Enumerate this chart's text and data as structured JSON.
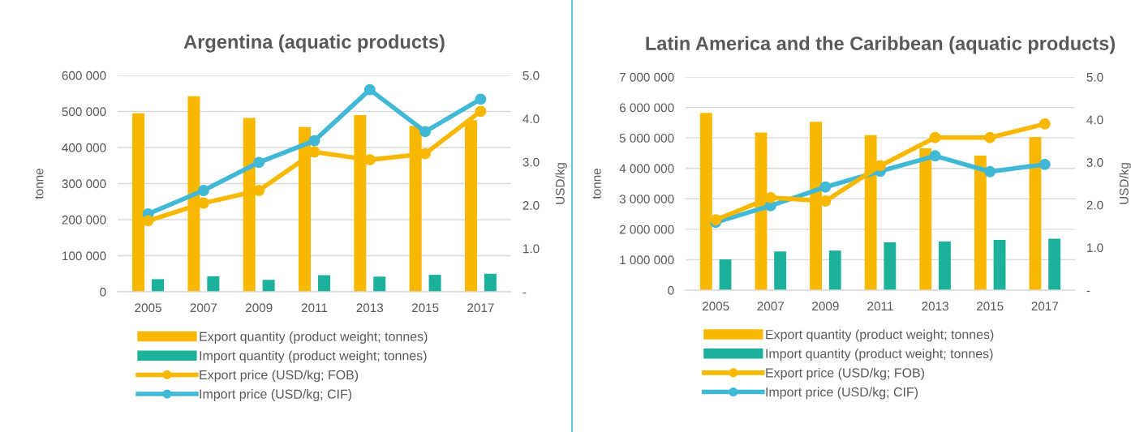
{
  "chart_data": [
    {
      "type": "bar",
      "title": "Argentina (aquatic products)",
      "ylabel": "tonne",
      "y2label": "USD/kg",
      "categories": [
        "2005",
        "2007",
        "2009",
        "2011",
        "2013",
        "2015",
        "2017"
      ],
      "series": [
        {
          "name": "Export quantity (product weight; tonnes)",
          "color": "#f9b800",
          "values": [
            495000,
            542000,
            482000,
            457000,
            490000,
            460000,
            476000
          ]
        },
        {
          "name": "Import quantity (product weight; tonnes)",
          "color": "#1bb19b",
          "values": [
            35000,
            43000,
            33000,
            46000,
            42000,
            47000,
            50000
          ]
        },
        {
          "name": "Export price (USD/kg; FOB)",
          "type": "line",
          "axis": "y2",
          "color": "#f9b800",
          "values": [
            1.64,
            2.05,
            2.34,
            3.23,
            3.05,
            3.19,
            4.17
          ]
        },
        {
          "name": "Import price (USD/kg; CIF)",
          "type": "line",
          "axis": "y2",
          "color": "#41b8d5",
          "values": [
            1.8,
            2.34,
            2.99,
            3.49,
            4.67,
            3.7,
            4.45
          ]
        }
      ],
      "ylim": [
        0,
        600000
      ],
      "yticks": [
        {
          "value": 0,
          "label": "0"
        },
        {
          "value": 100000,
          "label": "100 000"
        },
        {
          "value": 200000,
          "label": "200 000"
        },
        {
          "value": 300000,
          "label": "300 000"
        },
        {
          "value": 400000,
          "label": "400 000"
        },
        {
          "value": 500000,
          "label": "500 000"
        },
        {
          "value": 600000,
          "label": "600 000"
        }
      ],
      "y2lim": [
        0,
        5
      ],
      "y2ticks": [
        {
          "value": 0,
          "label": "-"
        },
        {
          "value": 1,
          "label": "1.0"
        },
        {
          "value": 2,
          "label": "2.0"
        },
        {
          "value": 3,
          "label": "3.0"
        },
        {
          "value": 4,
          "label": "4.0"
        },
        {
          "value": 5,
          "label": "5.0"
        }
      ],
      "grid": "y",
      "legend": "bottom",
      "marker": "circle"
    },
    {
      "type": "bar",
      "title": "Latin America and the Caribbean (aquatic products)",
      "ylabel": "tonne",
      "y2label": "USD/kg",
      "categories": [
        "2005",
        "2007",
        "2009",
        "2011",
        "2013",
        "2015",
        "2017"
      ],
      "series": [
        {
          "name": "Export quantity (product weight; tonnes)",
          "color": "#f9b800",
          "values": [
            5820000,
            5180000,
            5530000,
            5090000,
            4660000,
            4420000,
            5030000
          ]
        },
        {
          "name": "Import quantity (product weight; tonnes)",
          "color": "#1bb19b",
          "values": [
            1010000,
            1270000,
            1300000,
            1570000,
            1600000,
            1650000,
            1690000
          ]
        },
        {
          "name": "Export price (USD/kg; FOB)",
          "type": "line",
          "axis": "y2",
          "color": "#f9b800",
          "values": [
            1.65,
            2.17,
            2.09,
            2.92,
            3.58,
            3.58,
            3.9
          ]
        },
        {
          "name": "Import price (USD/kg; CIF)",
          "type": "line",
          "axis": "y2",
          "color": "#41b8d5",
          "values": [
            1.59,
            1.98,
            2.42,
            2.79,
            3.15,
            2.78,
            2.95
          ]
        }
      ],
      "ylim": [
        0,
        7000000
      ],
      "yticks": [
        {
          "value": 0,
          "label": "0"
        },
        {
          "value": 1000000,
          "label": "1 000 000"
        },
        {
          "value": 2000000,
          "label": "2 000 000"
        },
        {
          "value": 3000000,
          "label": "3 000 000"
        },
        {
          "value": 4000000,
          "label": "4 000 000"
        },
        {
          "value": 5000000,
          "label": "5 000 000"
        },
        {
          "value": 6000000,
          "label": "6 000 000"
        },
        {
          "value": 7000000,
          "label": "7 000 000"
        }
      ],
      "y2lim": [
        0,
        5
      ],
      "y2ticks": [
        {
          "value": 0,
          "label": "-"
        },
        {
          "value": 1,
          "label": "1.0"
        },
        {
          "value": 2,
          "label": "2.0"
        },
        {
          "value": 3,
          "label": "3.0"
        },
        {
          "value": 4,
          "label": "4.0"
        },
        {
          "value": 5,
          "label": "5.0"
        }
      ],
      "grid": "y",
      "legend": "bottom",
      "marker": "circle"
    }
  ]
}
